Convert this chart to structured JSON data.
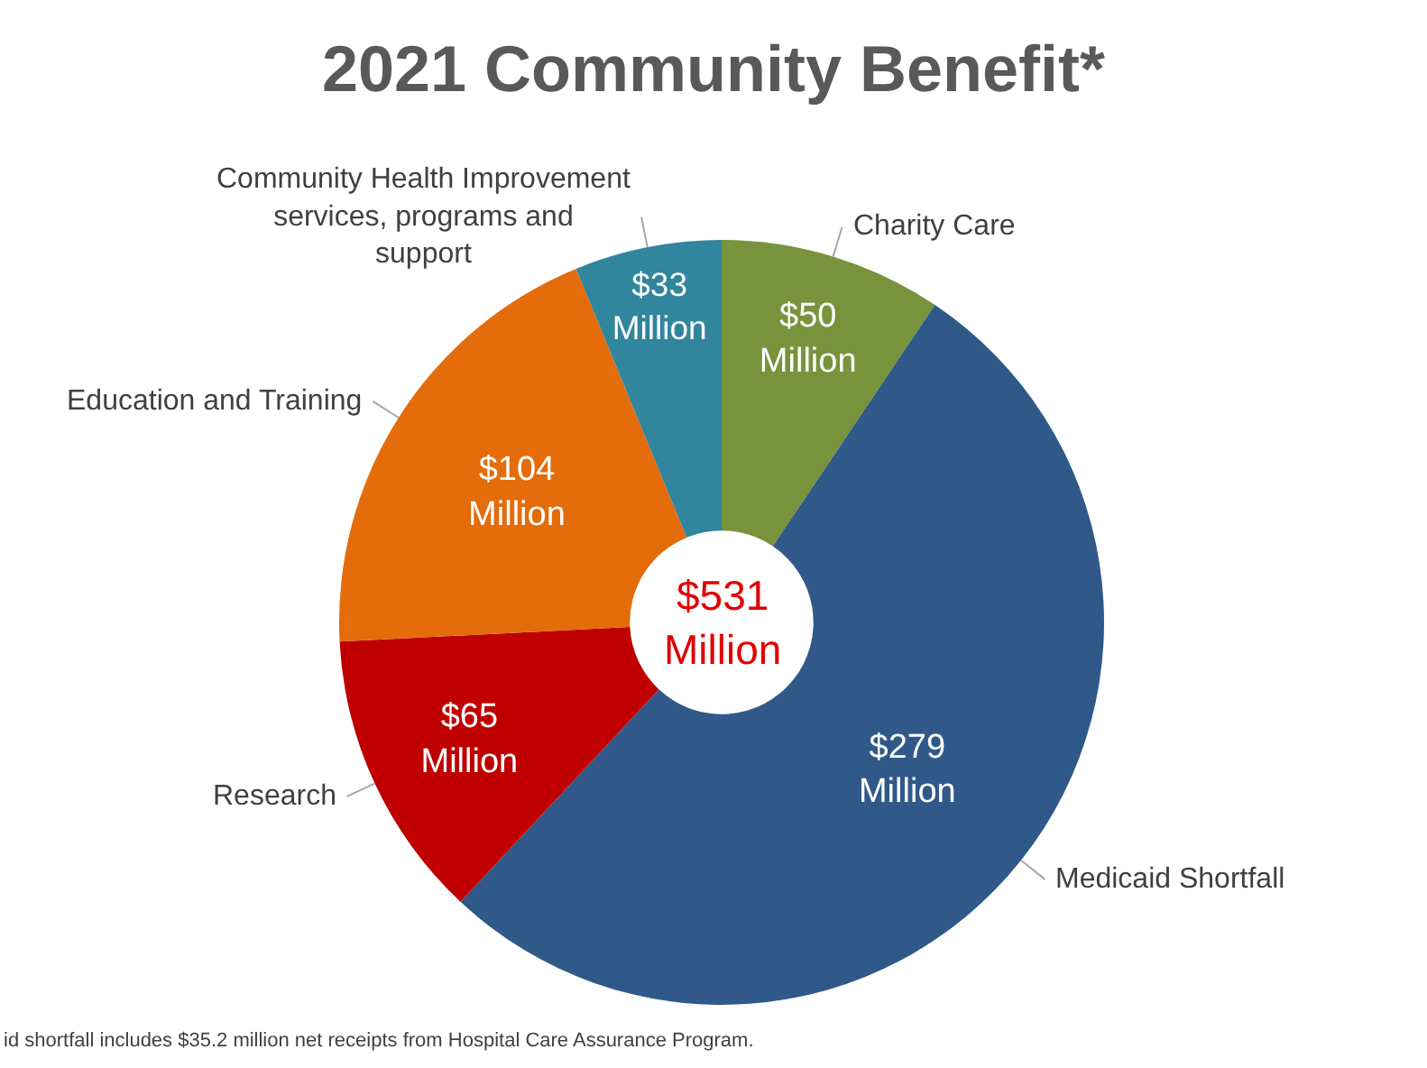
{
  "chart_data": {
    "type": "donut",
    "title": "2021 Community Benefit*",
    "categories": [
      "Charity Care",
      "Medicaid Shortfall",
      "Research",
      "Education and Training",
      "Community Health Improvement services, programs and support"
    ],
    "values": [
      50,
      279,
      65,
      104,
      33
    ],
    "colors": [
      "#77933c",
      "#30598a",
      "#c00000",
      "#e46c0a",
      "#31859c"
    ],
    "value_labels": [
      "$50 Million",
      "$279 Million",
      "$65 Million",
      "$104 Million",
      "$33 Million"
    ],
    "annotations": [
      "$531 Million",
      "id shortfall includes $35.2 million net receipts from Hospital Care Assurance Program."
    ],
    "legend": false
  }
}
